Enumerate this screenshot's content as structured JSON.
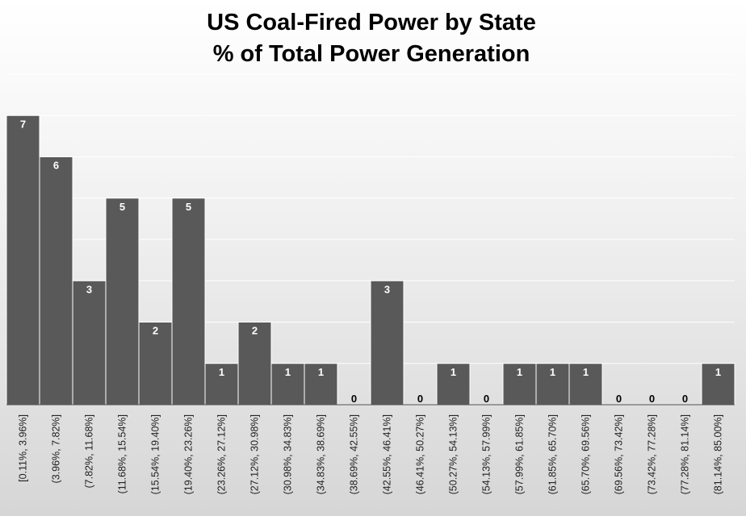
{
  "chart_data": {
    "type": "bar",
    "title": [
      "US Coal-Fired Power by State",
      "% of Total Power Generation"
    ],
    "xlabel": "",
    "ylabel": "",
    "ylim": [
      0,
      8
    ],
    "grid": true,
    "legend": "none",
    "bar_color": "#595959",
    "categories": [
      "[0.11%, 3.96%]",
      "(3.96%, 7.82%]",
      "(7.82%, 11.68%]",
      "(11.68%, 15.54%]",
      "(15.54%, 19.40%]",
      "(19.40%, 23.26%]",
      "(23.26%, 27.12%]",
      "(27.12%, 30.98%]",
      "(30.98%, 34.83%]",
      "(34.83%, 38.69%]",
      "(38.69%, 42.55%]",
      "(42.55%, 46.41%]",
      "(46.41%, 50.27%]",
      "(50.27%, 54.13%]",
      "(54.13%, 57.99%]",
      "(57.99%, 61.85%]",
      "(61.85%, 65.70%]",
      "(65.70%, 69.56%]",
      "(69.56%, 73.42%]",
      "(73.42%, 77.28%]",
      "(77.28%, 81.14%]",
      "(81.14%, 85.00%]"
    ],
    "values": [
      7,
      6,
      3,
      5,
      2,
      5,
      1,
      2,
      1,
      1,
      0,
      3,
      0,
      1,
      0,
      1,
      1,
      1,
      0,
      0,
      0,
      1
    ]
  }
}
